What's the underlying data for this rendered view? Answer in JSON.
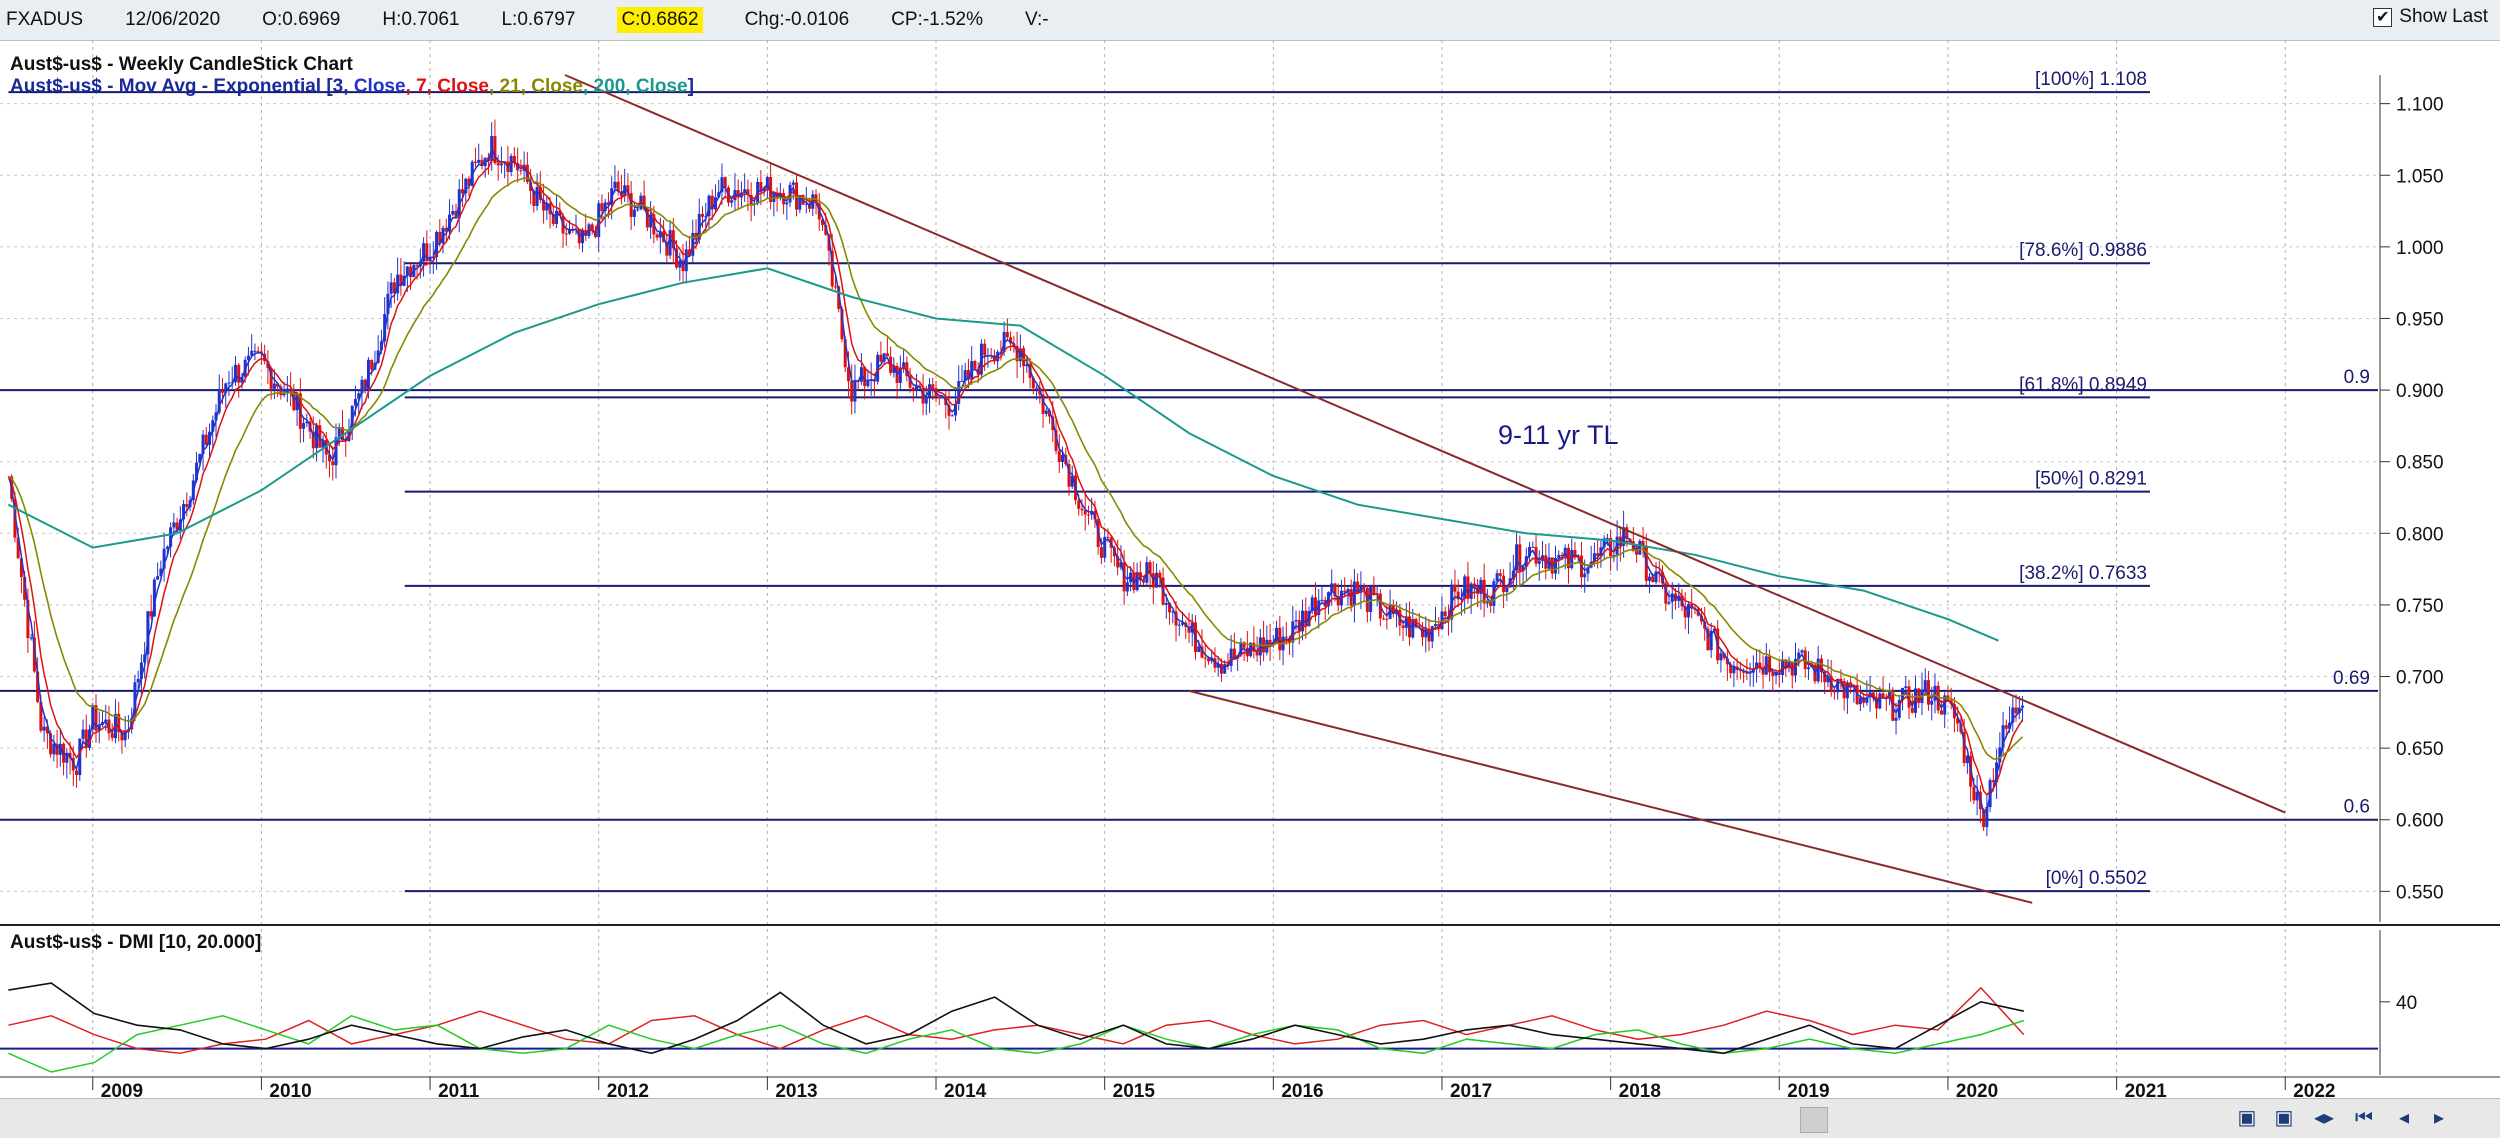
{
  "header": {
    "symbol": "FXADUS",
    "date": "12/06/2020",
    "open": "O:0.6969",
    "high": "H:0.7061",
    "low": "L:0.6797",
    "close": "C:0.6862",
    "change": "Chg:-0.0106",
    "change_pct": "CP:-1.52%",
    "volume": "V:-",
    "show_last_label": "Show Last",
    "show_last_checked": "✔"
  },
  "legend": {
    "line1": "Aust$-us$ - Weekly CandleStick Chart",
    "line2_prefix": "Aust$-us$ - Mov Avg - Exponential [3, ",
    "ma3": "Close",
    "sep1": ", 7, ",
    "ma7": "Close",
    "sep2": ", 21, ",
    "ma21": "Close",
    "sep3": ", 200, ",
    "ma200": "Close",
    "suffix": "]"
  },
  "lower_legend": "Aust$-us$ - DMI [10, 20.000]",
  "annotation": "9-11 yr TL",
  "colors": {
    "ma3": "#2233cc",
    "ma7": "#dd1111",
    "ma21": "#888800",
    "ma200": "#1a9a8a",
    "trendline": "#8b2a2a",
    "fib": "#1a1a6e",
    "dmi_adx": "#111111",
    "dmi_plus": "#22cc22",
    "dmi_minus": "#dd2222"
  },
  "chart_data": {
    "type": "line",
    "title": "Aust$-us$ - Weekly CandleStick Chart",
    "xlabel": "",
    "ylabel": "",
    "x_ticks": [
      "2009",
      "2010",
      "2011",
      "2012",
      "2013",
      "2014",
      "2015",
      "2016",
      "2017",
      "2018",
      "2019",
      "2020",
      "2021",
      "2022"
    ],
    "y_ticks": [
      "1.100",
      "1.050",
      "1.000",
      "0.950",
      "0.900",
      "0.850",
      "0.800",
      "0.750",
      "0.700",
      "0.650",
      "0.600",
      "0.550"
    ],
    "ylim": [
      0.53,
      1.12
    ],
    "grid": true,
    "fib_levels": [
      {
        "label": "[100%] 1.108",
        "value": 1.108
      },
      {
        "label": "[78.6%] 0.9886",
        "value": 0.9886
      },
      {
        "label": "[61.8%] 0.8949",
        "value": 0.8949
      },
      {
        "label": "[50%] 0.8291",
        "value": 0.8291
      },
      {
        "label": "[38.2%] 0.7633",
        "value": 0.7633
      },
      {
        "label": "[0%] 0.5502",
        "value": 0.5502
      }
    ],
    "horizontal_lines": [
      {
        "label": "0.9",
        "value": 0.9
      },
      {
        "label": "0.69",
        "value": 0.69
      },
      {
        "label": "0.6",
        "value": 0.6
      }
    ],
    "trendlines": [
      {
        "name": "9-11 yr TL",
        "points": [
          [
            2011.8,
            1.12
          ],
          [
            2022.0,
            0.605
          ]
        ]
      },
      {
        "name": "",
        "points": [
          [
            2015.5,
            0.69
          ],
          [
            2020.5,
            0.542
          ]
        ]
      }
    ],
    "price_weekly_close": {
      "x": [
        2008.5,
        2008.7,
        2008.9,
        2009.0,
        2009.2,
        2009.4,
        2009.6,
        2009.8,
        2010.0,
        2010.2,
        2010.4,
        2010.6,
        2010.8,
        2011.0,
        2011.2,
        2011.35,
        2011.5,
        2011.7,
        2011.9,
        2012.1,
        2012.3,
        2012.5,
        2012.7,
        2012.9,
        2013.1,
        2013.3,
        2013.5,
        2013.7,
        2013.9,
        2014.1,
        2014.3,
        2014.5,
        2014.7,
        2014.9,
        2015.1,
        2015.3,
        2015.5,
        2015.7,
        2015.9,
        2016.1,
        2016.3,
        2016.5,
        2016.7,
        2016.9,
        2017.1,
        2017.3,
        2017.5,
        2017.7,
        2017.9,
        2018.1,
        2018.3,
        2018.5,
        2018.7,
        2018.9,
        2019.1,
        2019.3,
        2019.5,
        2019.7,
        2019.9,
        2020.05,
        2020.2,
        2020.3,
        2020.45
      ],
      "values": [
        0.84,
        0.66,
        0.64,
        0.67,
        0.66,
        0.78,
        0.84,
        0.91,
        0.92,
        0.89,
        0.85,
        0.9,
        0.98,
        1.0,
        1.04,
        1.07,
        1.06,
        1.02,
        1.0,
        1.04,
        1.02,
        0.99,
        1.04,
        1.04,
        1.04,
        1.03,
        0.9,
        0.92,
        0.9,
        0.89,
        0.93,
        0.93,
        0.87,
        0.81,
        0.77,
        0.77,
        0.73,
        0.71,
        0.72,
        0.73,
        0.76,
        0.76,
        0.74,
        0.73,
        0.76,
        0.76,
        0.79,
        0.78,
        0.78,
        0.8,
        0.76,
        0.74,
        0.71,
        0.71,
        0.71,
        0.7,
        0.68,
        0.68,
        0.69,
        0.67,
        0.6,
        0.65,
        0.69
      ]
    },
    "ema200": {
      "x": [
        2008.5,
        2009.0,
        2009.5,
        2010.0,
        2010.5,
        2011.0,
        2011.5,
        2012.0,
        2012.5,
        2013.0,
        2013.5,
        2014.0,
        2014.5,
        2015.0,
        2015.5,
        2016.0,
        2016.5,
        2017.0,
        2017.5,
        2018.0,
        2018.5,
        2019.0,
        2019.5,
        2020.0,
        2020.3
      ],
      "values": [
        0.82,
        0.79,
        0.8,
        0.83,
        0.87,
        0.91,
        0.94,
        0.96,
        0.975,
        0.985,
        0.965,
        0.95,
        0.945,
        0.91,
        0.87,
        0.84,
        0.82,
        0.81,
        0.8,
        0.795,
        0.785,
        0.77,
        0.76,
        0.74,
        0.725
      ]
    },
    "dmi": {
      "y_ticks": [
        "40"
      ],
      "adx": [
        45,
        48,
        35,
        30,
        28,
        22,
        20,
        24,
        30,
        26,
        22,
        20,
        25,
        28,
        22,
        18,
        24,
        32,
        44,
        30,
        22,
        26,
        36,
        42,
        30,
        24,
        30,
        22,
        20,
        24,
        30,
        26,
        22,
        24,
        28,
        30,
        26,
        24,
        22,
        20,
        18,
        24,
        30,
        22,
        20,
        30,
        40,
        36
      ],
      "plus_di": [
        18,
        10,
        14,
        26,
        30,
        34,
        28,
        22,
        34,
        28,
        30,
        20,
        18,
        20,
        30,
        24,
        20,
        26,
        30,
        22,
        18,
        24,
        28,
        20,
        18,
        22,
        30,
        24,
        20,
        26,
        30,
        28,
        20,
        18,
        24,
        22,
        20,
        26,
        28,
        22,
        18,
        20,
        24,
        20,
        18,
        22,
        26,
        32
      ],
      "minus_di": [
        30,
        34,
        26,
        20,
        18,
        22,
        24,
        32,
        22,
        26,
        30,
        36,
        30,
        24,
        22,
        32,
        34,
        26,
        20,
        28,
        34,
        26,
        24,
        28,
        30,
        26,
        22,
        30,
        32,
        26,
        22,
        24,
        30,
        32,
        26,
        30,
        34,
        28,
        24,
        26,
        30,
        36,
        32,
        26,
        30,
        28,
        46,
        26
      ],
      "range": [
        10,
        60
      ]
    }
  }
}
